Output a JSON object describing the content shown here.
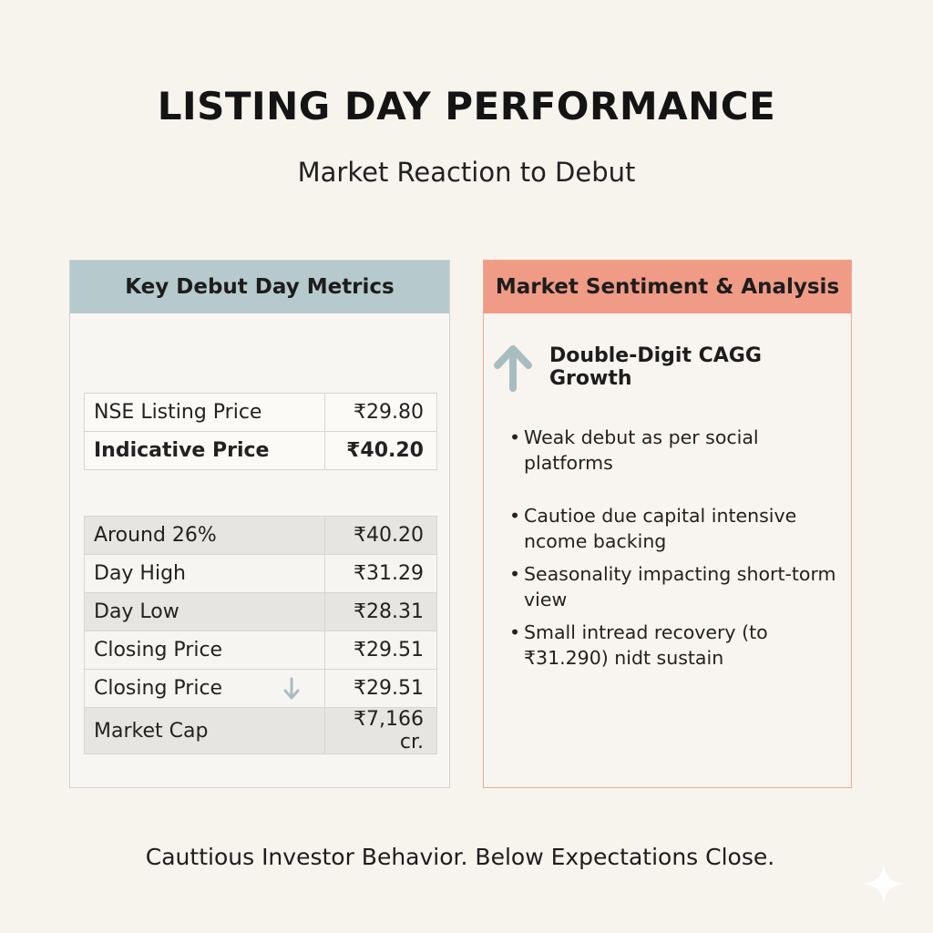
{
  "title": "LISTING DAY PERFORMANCE",
  "subtitle": "Market Reaction to Debut",
  "left_panel": {
    "header": "Key Debut Day Metrics",
    "table_top": [
      {
        "label": "NSE Listing Price",
        "value": "₹29.80"
      },
      {
        "label": "Indicative Price",
        "value": "₹40.20"
      }
    ],
    "table_bottom": [
      {
        "label": "Around 26%",
        "value": "₹40.20"
      },
      {
        "label": "Day High",
        "value": "₹31.29"
      },
      {
        "label": "Day Low",
        "value": "₹28.31"
      },
      {
        "label": "Closing Price",
        "value": "₹29.51"
      },
      {
        "label": "Closing Price",
        "value": "₹29.51"
      },
      {
        "label": "Market Cap",
        "value": "₹7,166 cr."
      }
    ]
  },
  "right_panel": {
    "header": "Market Sentiment & Analysis",
    "growth_label": "Double-Digit CAGG Growth",
    "bullets": [
      "Weak debut as per social platforms",
      "Cautioe due capital intensive ncome backing",
      "Seasonality impacting short-torm view",
      "Small intread recovery (to ₹31.290) nidt sustain"
    ]
  },
  "footer": "Cauttious Investor Behavior. Below Expectations Close.",
  "colors": {
    "background": "#f7f3ed",
    "left_header": "#b6cace",
    "right_header": "#ef9b85",
    "right_border": "#ecaa96",
    "arrow": "#a9bcc0"
  },
  "icons": {
    "growth": "up-arrow-icon",
    "closing": "down-arrow-icon",
    "corner": "sparkle-icon"
  }
}
